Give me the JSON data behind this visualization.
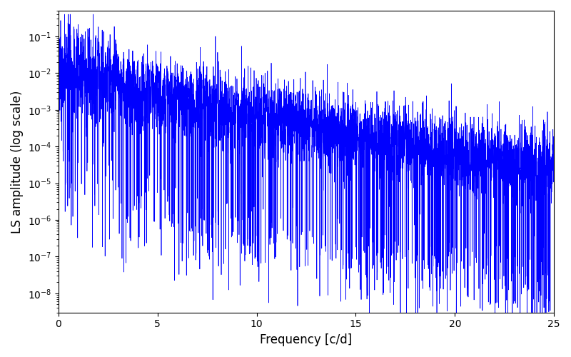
{
  "title": "",
  "xlabel": "Frequency [c/d]",
  "ylabel": "LS amplitude (log scale)",
  "xlim": [
    0,
    25
  ],
  "ylim": [
    3e-09,
    0.5
  ],
  "line_color": "blue",
  "line_width": 0.5,
  "freq_max": 25.0,
  "n_points": 5000,
  "seed": 7,
  "background_color": "#ffffff",
  "figsize": [
    8.0,
    5.0
  ],
  "dpi": 100
}
